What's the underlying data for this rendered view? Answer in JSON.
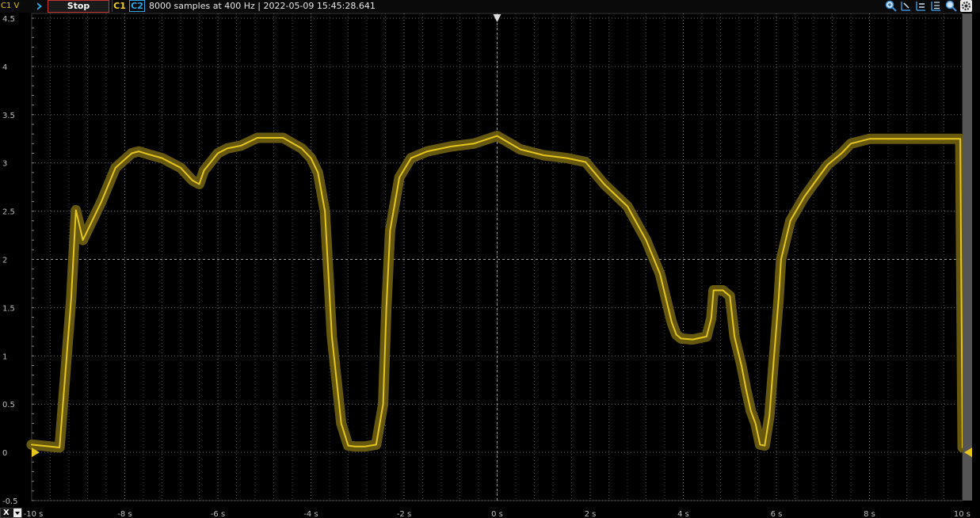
{
  "toolbar": {
    "channel_scale_label": "C1 V",
    "run_icon": "chevron-right-icon",
    "stop_label": "Stop",
    "c1_label": "C1",
    "c2_label": "C2",
    "status_text": "8000 samples at 400 Hz | 2022-05-09 15:45:28.641",
    "right_icons": [
      "zoom-in-icon",
      "zoom-out-horizontal-icon",
      "zoom-fit-horizontal-icon",
      "zoom-fit-vertical-icon",
      "zoom-magnifier-icon",
      "settings-gear-icon"
    ]
  },
  "x_axis_button": {
    "label": "X"
  },
  "colors": {
    "background": "#000000",
    "grid": "#6a6a6a",
    "c1_trace": "#e6c51c",
    "c1_envelope": "#6b5e10",
    "c2": "#2ba8e8",
    "stop_border": "#c8342e",
    "scrollbar": "#555555"
  },
  "chart_data": {
    "type": "line",
    "xlabel": "",
    "ylabel": "C1 V",
    "xlim": [
      -10,
      10
    ],
    "ylim": [
      -0.5,
      4.5
    ],
    "x_ticks": [
      "-10 s",
      "-8 s",
      "-6 s",
      "-4 s",
      "-2 s",
      "0 s",
      "2 s",
      "4 s",
      "6 s",
      "8 s",
      "10 s"
    ],
    "y_ticks": [
      "4.5",
      "4",
      "3.5",
      "3",
      "2.5",
      "2",
      "1.5",
      "1",
      "0.5",
      "0",
      "-0.5"
    ],
    "grid": true,
    "series": [
      {
        "name": "C1",
        "x": [
          -10.0,
          -9.4,
          -9.15,
          -9.05,
          -8.9,
          -8.5,
          -8.2,
          -7.85,
          -7.7,
          -7.5,
          -7.2,
          -6.8,
          -6.55,
          -6.4,
          -6.3,
          -6.0,
          -5.8,
          -5.5,
          -5.15,
          -4.6,
          -4.2,
          -4.0,
          -3.85,
          -3.7,
          -3.55,
          -3.35,
          -3.2,
          -3.05,
          -2.85,
          -2.6,
          -2.45,
          -2.38,
          -2.3,
          -2.1,
          -1.85,
          -1.5,
          -1.0,
          -0.5,
          0.0,
          0.5,
          1.0,
          1.5,
          1.9,
          2.3,
          2.8,
          3.2,
          3.5,
          3.75,
          3.85,
          3.95,
          4.2,
          4.5,
          4.6,
          4.65,
          4.85,
          5.0,
          5.1,
          5.25,
          5.35,
          5.45,
          5.55,
          5.65,
          5.75,
          5.85,
          5.95,
          6.05,
          6.1,
          6.3,
          6.6,
          6.9,
          7.1,
          7.4,
          7.6,
          8.0,
          9.0,
          9.95,
          9.97,
          10.0
        ],
        "values": [
          0.08,
          0.05,
          1.6,
          2.51,
          2.2,
          2.6,
          2.95,
          3.1,
          3.12,
          3.09,
          3.05,
          2.95,
          2.82,
          2.78,
          2.92,
          3.1,
          3.15,
          3.18,
          3.26,
          3.26,
          3.15,
          3.05,
          2.9,
          2.5,
          1.2,
          0.3,
          0.07,
          0.06,
          0.06,
          0.08,
          0.5,
          1.5,
          2.3,
          2.85,
          3.05,
          3.12,
          3.17,
          3.2,
          3.28,
          3.14,
          3.08,
          3.05,
          3.01,
          2.78,
          2.55,
          2.2,
          1.85,
          1.35,
          1.22,
          1.18,
          1.17,
          1.2,
          1.39,
          1.68,
          1.68,
          1.62,
          1.2,
          0.9,
          0.65,
          0.43,
          0.3,
          0.08,
          0.07,
          0.38,
          1.0,
          1.6,
          2.0,
          2.4,
          2.65,
          2.85,
          2.98,
          3.1,
          3.2,
          3.25,
          3.25,
          3.25,
          1.95,
          0.05
        ]
      }
    ]
  }
}
